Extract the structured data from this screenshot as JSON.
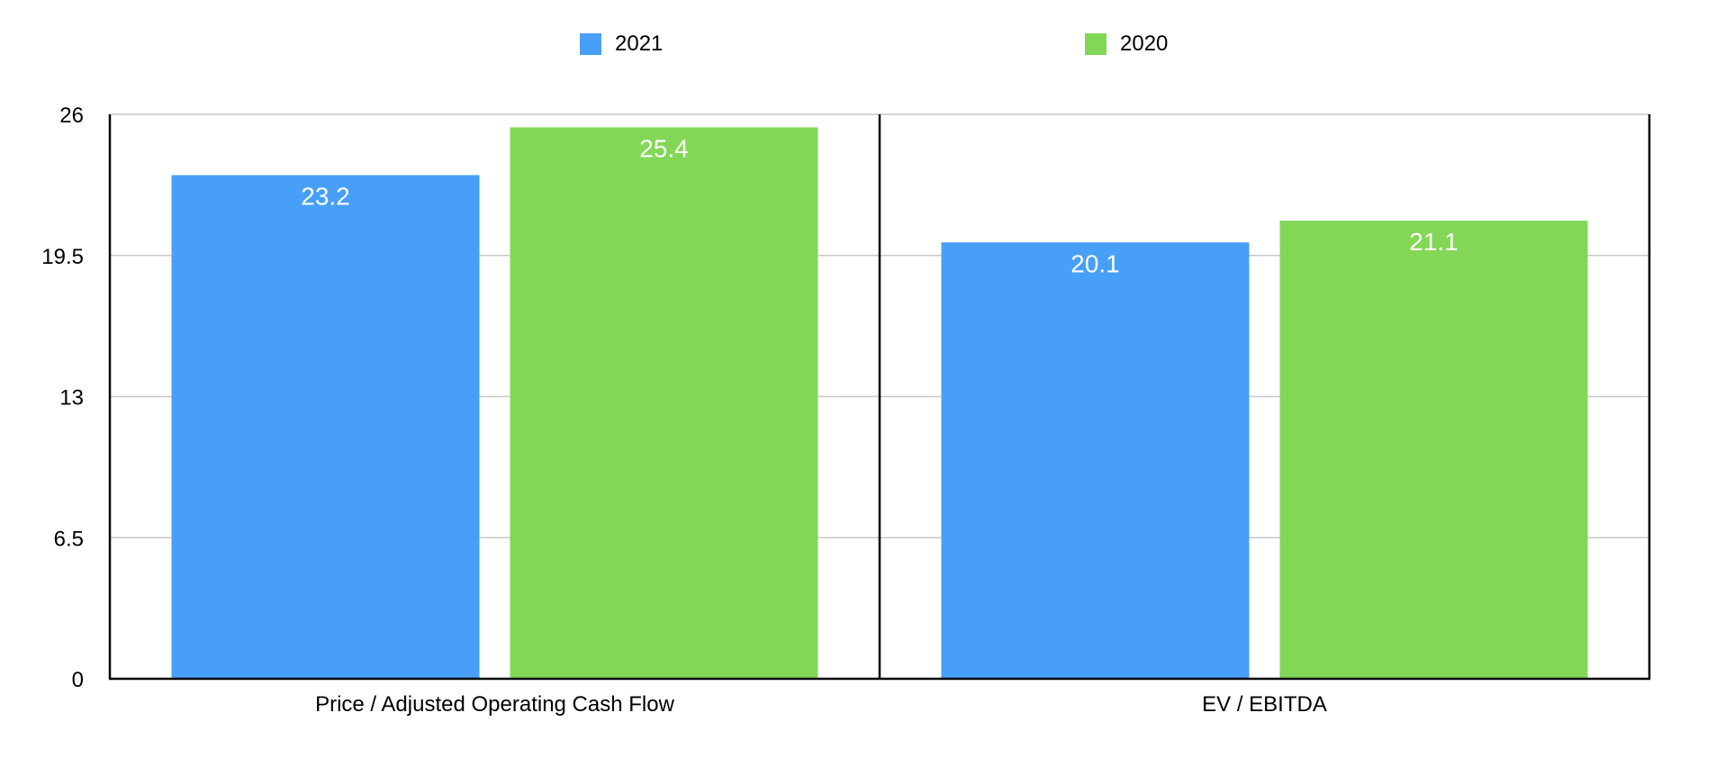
{
  "chart_data": {
    "type": "bar",
    "categories": [
      "Price / Adjusted Operating Cash Flow",
      "EV / EBITDA"
    ],
    "series": [
      {
        "name": "2021",
        "values": [
          23.2,
          20.1
        ],
        "color": "#479ff8"
      },
      {
        "name": "2020",
        "values": [
          25.4,
          21.1
        ],
        "color": "#82d756"
      }
    ],
    "y_ticks": [
      "0",
      "6.5",
      "13",
      "19.5",
      "26"
    ],
    "y_tick_values": [
      0,
      6.5,
      13,
      19.5,
      26
    ],
    "ylim": [
      0,
      26
    ],
    "title": "",
    "xlabel": "",
    "ylabel": "",
    "legend_position": "top-center",
    "grid": true,
    "data_labels": true
  }
}
